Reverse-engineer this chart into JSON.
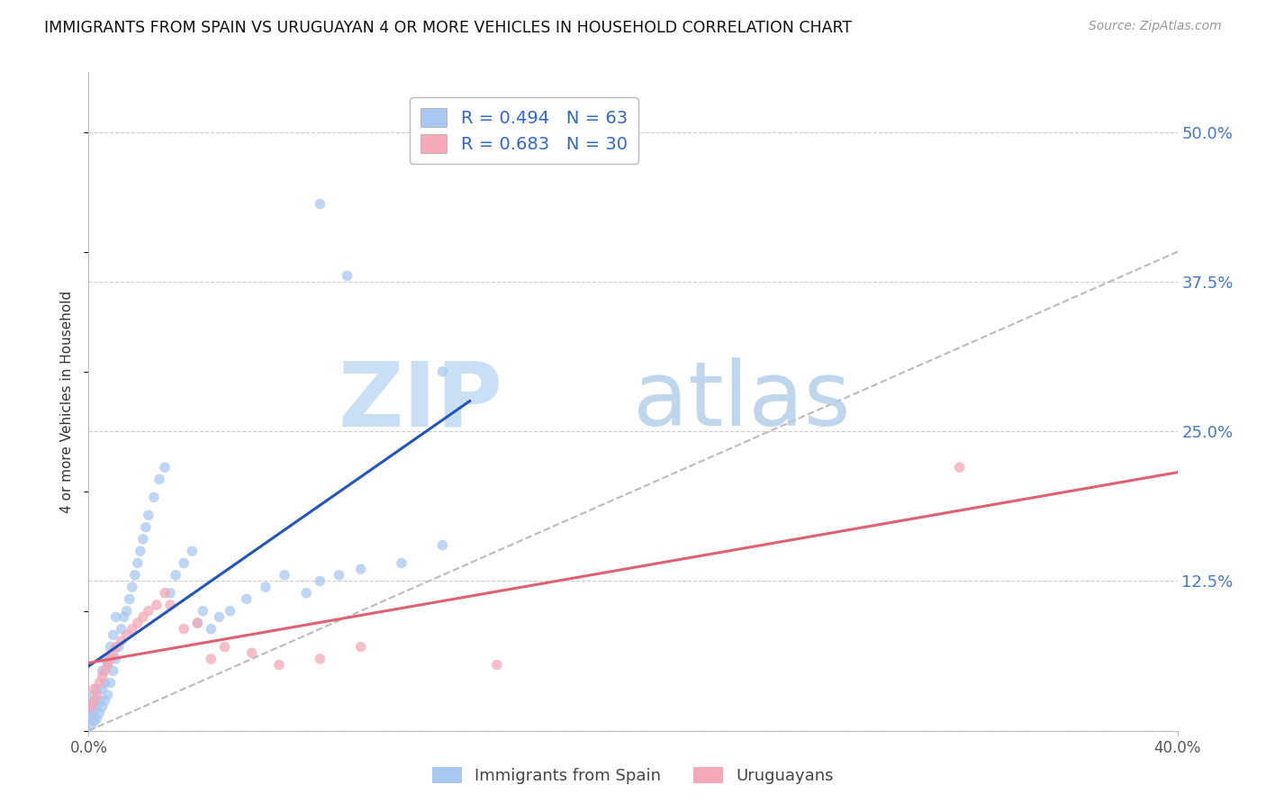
{
  "title": "IMMIGRANTS FROM SPAIN VS URUGUAYAN 4 OR MORE VEHICLES IN HOUSEHOLD CORRELATION CHART",
  "source": "Source: ZipAtlas.com",
  "ylabel": "4 or more Vehicles in Household",
  "xlim": [
    0.0,
    0.4
  ],
  "ylim": [
    0.0,
    0.55
  ],
  "yticks_right": [
    0.0,
    0.125,
    0.25,
    0.375,
    0.5
  ],
  "yticklabels_right": [
    "",
    "12.5%",
    "25.0%",
    "37.5%",
    "50.0%"
  ],
  "legend_entries": [
    {
      "label": "R = 0.494   N = 63",
      "color": "#a8c8f0"
    },
    {
      "label": "R = 0.683   N = 30",
      "color": "#f4a8b8"
    }
  ],
  "legend_labels_bottom": [
    "Immigrants from Spain",
    "Uruguayans"
  ],
  "blue_color": "#a8c8f0",
  "pink_color": "#f4a8b8",
  "blue_line_color": "#2255bb",
  "pink_line_color": "#e06070",
  "diag_line_color": "#bbbbbb",
  "blue_scatter_x": [
    0.001,
    0.001,
    0.001,
    0.001,
    0.002,
    0.002,
    0.002,
    0.002,
    0.003,
    0.003,
    0.003,
    0.004,
    0.004,
    0.005,
    0.005,
    0.005,
    0.006,
    0.006,
    0.006,
    0.007,
    0.007,
    0.008,
    0.008,
    0.009,
    0.009,
    0.01,
    0.01,
    0.011,
    0.012,
    0.013,
    0.014,
    0.015,
    0.016,
    0.017,
    0.018,
    0.019,
    0.02,
    0.021,
    0.022,
    0.024,
    0.026,
    0.028,
    0.03,
    0.032,
    0.035,
    0.038,
    0.04,
    0.042,
    0.045,
    0.048,
    0.052,
    0.058,
    0.065,
    0.072,
    0.08,
    0.085,
    0.092,
    0.1,
    0.115,
    0.13,
    0.085,
    0.095,
    0.13
  ],
  "blue_scatter_y": [
    0.005,
    0.01,
    0.015,
    0.02,
    0.008,
    0.015,
    0.025,
    0.03,
    0.01,
    0.02,
    0.035,
    0.015,
    0.025,
    0.02,
    0.035,
    0.05,
    0.025,
    0.04,
    0.06,
    0.03,
    0.055,
    0.04,
    0.07,
    0.05,
    0.08,
    0.06,
    0.095,
    0.07,
    0.085,
    0.095,
    0.1,
    0.11,
    0.12,
    0.13,
    0.14,
    0.15,
    0.16,
    0.17,
    0.18,
    0.195,
    0.21,
    0.22,
    0.115,
    0.13,
    0.14,
    0.15,
    0.09,
    0.1,
    0.085,
    0.095,
    0.1,
    0.11,
    0.12,
    0.13,
    0.115,
    0.125,
    0.13,
    0.135,
    0.14,
    0.155,
    0.44,
    0.38,
    0.3
  ],
  "pink_scatter_x": [
    0.001,
    0.002,
    0.002,
    0.003,
    0.004,
    0.005,
    0.006,
    0.007,
    0.008,
    0.009,
    0.01,
    0.012,
    0.014,
    0.016,
    0.018,
    0.02,
    0.022,
    0.025,
    0.028,
    0.03,
    0.035,
    0.04,
    0.045,
    0.05,
    0.06,
    0.07,
    0.085,
    0.1,
    0.15,
    0.32
  ],
  "pink_scatter_y": [
    0.02,
    0.025,
    0.035,
    0.03,
    0.04,
    0.045,
    0.05,
    0.055,
    0.06,
    0.065,
    0.07,
    0.075,
    0.08,
    0.085,
    0.09,
    0.095,
    0.1,
    0.105,
    0.115,
    0.105,
    0.085,
    0.09,
    0.06,
    0.07,
    0.065,
    0.055,
    0.06,
    0.07,
    0.055,
    0.22
  ]
}
